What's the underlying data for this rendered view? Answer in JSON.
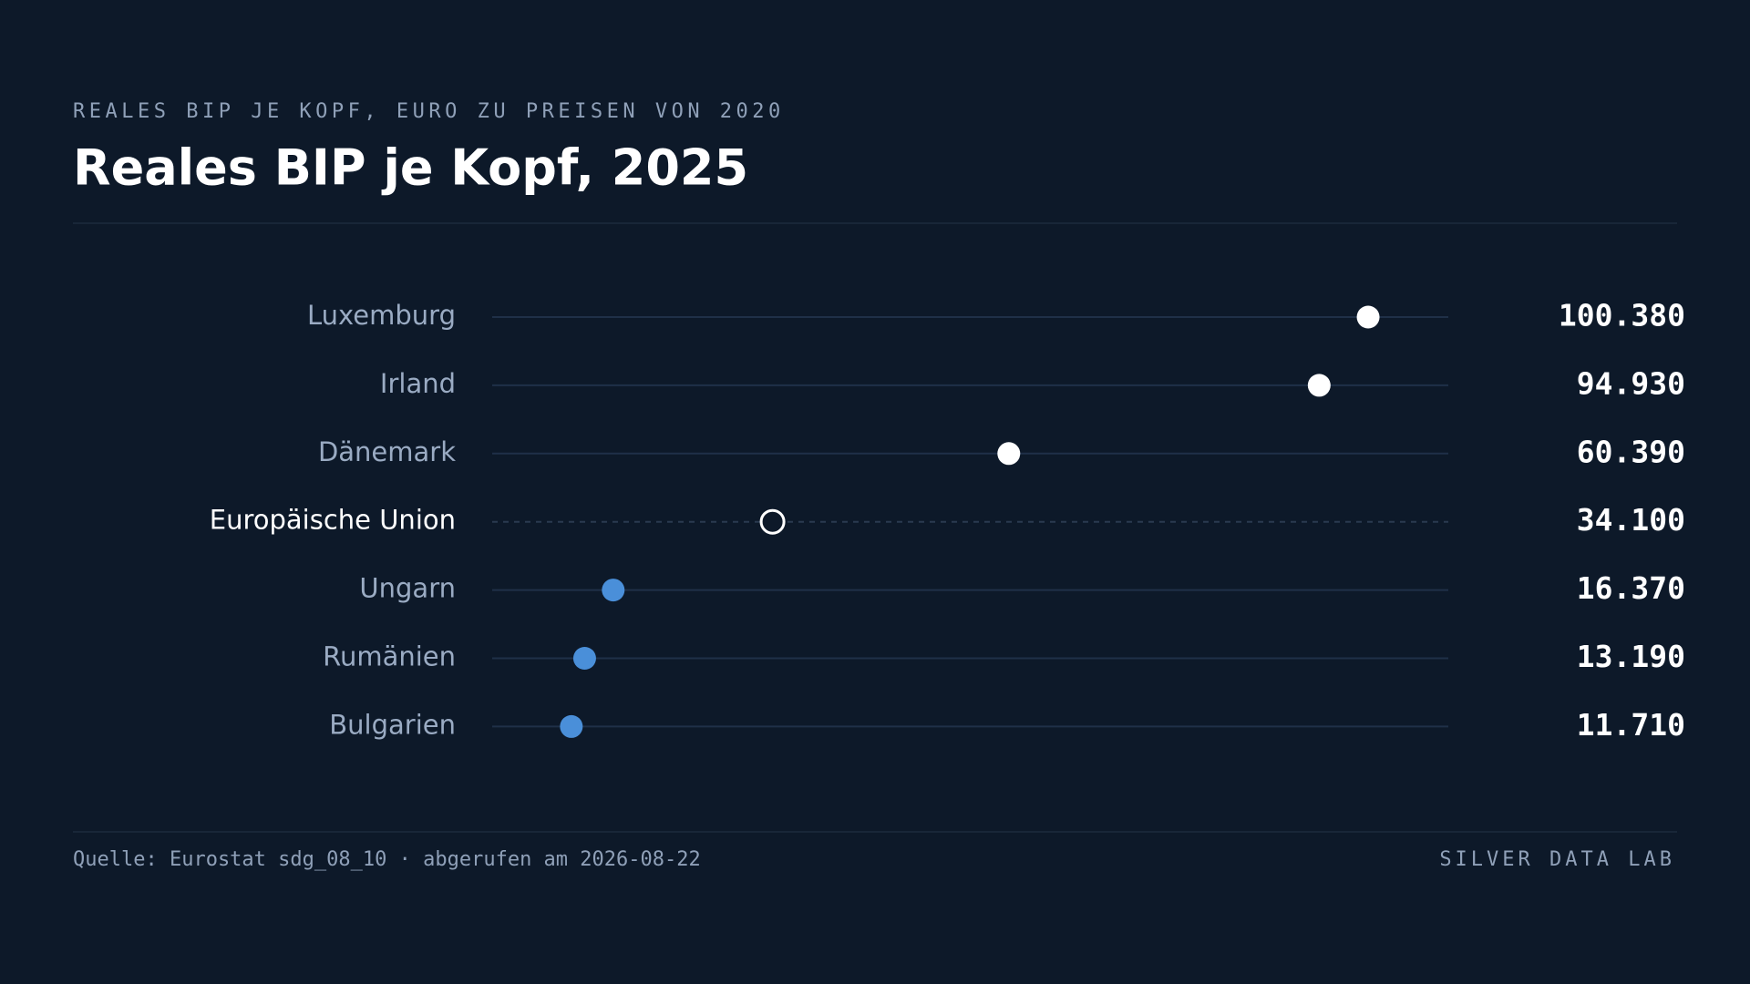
{
  "chart_data": {
    "type": "dot",
    "subtitle": "REALES BIP JE KOPF, EURO ZU PREISEN VON 2020",
    "title": "Reales BIP je Kopf, 2025",
    "categories": [
      "Luxemburg",
      "Irland",
      "Dänemark",
      "Europäische Union",
      "Ungarn",
      "Rumänien",
      "Bulgarien"
    ],
    "values": [
      100380,
      94930,
      60390,
      34100,
      16370,
      13190,
      11710
    ],
    "value_labels": [
      "100.380",
      "94.930",
      "60.390",
      "34.100",
      "16.370",
      "13.190",
      "11.710"
    ],
    "colors": [
      "#ffffff",
      "#ffffff",
      "#ffffff",
      "#ffffff",
      "#4a8fd9",
      "#4a8fd9",
      "#4a8fd9"
    ],
    "marker_styles": [
      "filled",
      "filled",
      "filled",
      "hollow",
      "filled",
      "filled",
      "filled"
    ],
    "xlim": [
      2900,
      109300
    ],
    "source": "Quelle: Eurostat sdg_08_10 · abgerufen am 2026-08-22",
    "brand": "SILVER DATA LAB"
  }
}
